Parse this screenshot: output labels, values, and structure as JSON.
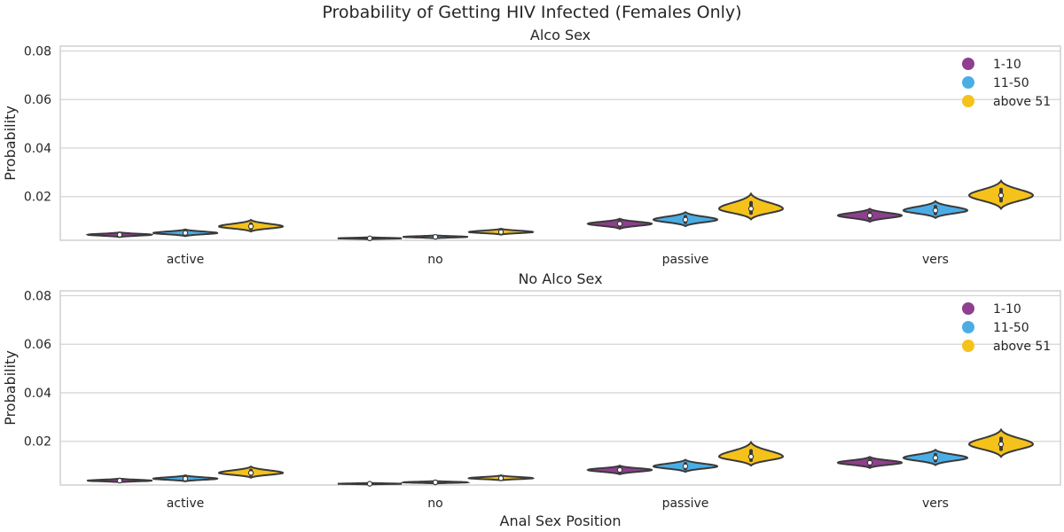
{
  "chart_data": {
    "type": "violin",
    "title": "Probability of Getting HIV Infected (Females Only)",
    "xlabel": "Anal Sex Position",
    "ylabel": "Probability",
    "categories": [
      "active",
      "no",
      "passive",
      "vers"
    ],
    "hue_order": [
      "1-10",
      "11-50",
      "above 51"
    ],
    "colors": {
      "1-10": "#8e3f8e",
      "11-50": "#4aaee5",
      "above 51": "#f4c21a"
    },
    "ylim": [
      0.002,
      0.082
    ],
    "yticks": [
      0.02,
      0.04,
      0.06,
      0.08
    ],
    "yticklabels": [
      "0.02",
      "0.04",
      "0.06",
      "0.08"
    ],
    "grid": true,
    "legend_position": "upper right",
    "panels": [
      {
        "title": "Alco Sex",
        "groups": [
          {
            "category": "active",
            "hue": "1-10",
            "median": 0.0043,
            "min": 0.0033,
            "max": 0.0053
          },
          {
            "category": "active",
            "hue": "11-50",
            "median": 0.005,
            "min": 0.0037,
            "max": 0.0065
          },
          {
            "category": "active",
            "hue": "above 51",
            "median": 0.0077,
            "min": 0.0056,
            "max": 0.0104
          },
          {
            "category": "no",
            "hue": "1-10",
            "median": 0.0028,
            "min": 0.0024,
            "max": 0.0033
          },
          {
            "category": "no",
            "hue": "11-50",
            "median": 0.0034,
            "min": 0.0028,
            "max": 0.0041
          },
          {
            "category": "no",
            "hue": "above 51",
            "median": 0.0054,
            "min": 0.0043,
            "max": 0.0068
          },
          {
            "category": "passive",
            "hue": "1-10",
            "median": 0.0088,
            "min": 0.0067,
            "max": 0.0109
          },
          {
            "category": "passive",
            "hue": "11-50",
            "median": 0.0105,
            "min": 0.0078,
            "max": 0.0136
          },
          {
            "category": "passive",
            "hue": "above 51",
            "median": 0.015,
            "min": 0.0106,
            "max": 0.0212
          },
          {
            "category": "vers",
            "hue": "1-10",
            "median": 0.0122,
            "min": 0.0096,
            "max": 0.015
          },
          {
            "category": "vers",
            "hue": "11-50",
            "median": 0.0143,
            "min": 0.0112,
            "max": 0.0181
          },
          {
            "category": "vers",
            "hue": "above 51",
            "median": 0.0205,
            "min": 0.015,
            "max": 0.0265
          }
        ]
      },
      {
        "title": "No Alco Sex",
        "groups": [
          {
            "category": "active",
            "hue": "1-10",
            "median": 0.0038,
            "min": 0.0031,
            "max": 0.0047
          },
          {
            "category": "active",
            "hue": "11-50",
            "median": 0.0046,
            "min": 0.0035,
            "max": 0.006
          },
          {
            "category": "active",
            "hue": "above 51",
            "median": 0.007,
            "min": 0.005,
            "max": 0.0096
          },
          {
            "category": "no",
            "hue": "1-10",
            "median": 0.0025,
            "min": 0.0022,
            "max": 0.0029
          },
          {
            "category": "no",
            "hue": "11-50",
            "median": 0.0031,
            "min": 0.0026,
            "max": 0.0037
          },
          {
            "category": "no",
            "hue": "above 51",
            "median": 0.0048,
            "min": 0.0039,
            "max": 0.006
          },
          {
            "category": "passive",
            "hue": "1-10",
            "median": 0.0082,
            "min": 0.0064,
            "max": 0.01
          },
          {
            "category": "passive",
            "hue": "11-50",
            "median": 0.0097,
            "min": 0.0074,
            "max": 0.0124
          },
          {
            "category": "passive",
            "hue": "above 51",
            "median": 0.0137,
            "min": 0.01,
            "max": 0.0196
          },
          {
            "category": "vers",
            "hue": "1-10",
            "median": 0.0112,
            "min": 0.009,
            "max": 0.0136
          },
          {
            "category": "vers",
            "hue": "11-50",
            "median": 0.0132,
            "min": 0.0102,
            "max": 0.0165
          },
          {
            "category": "vers",
            "hue": "above 51",
            "median": 0.0188,
            "min": 0.0136,
            "max": 0.0248
          }
        ]
      }
    ]
  }
}
